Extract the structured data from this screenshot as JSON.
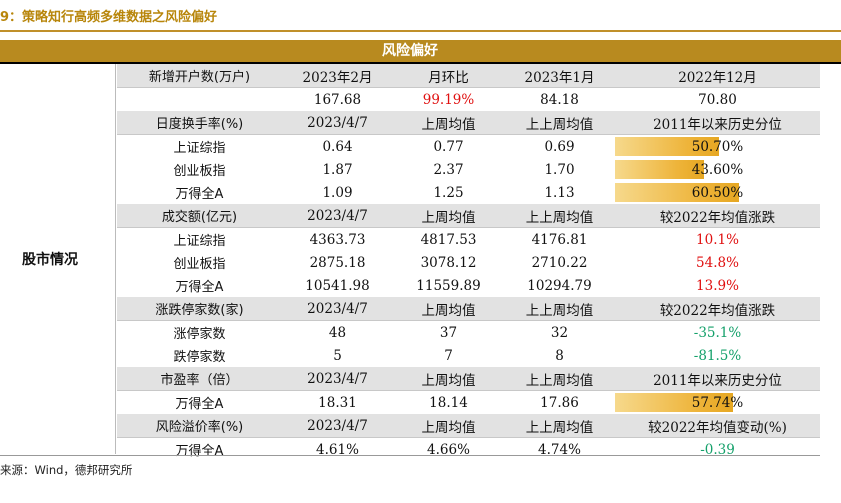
{
  "title": "9：策略知行高频多维数据之风险偏好",
  "header": "风险偏好",
  "left_label": "股市情况",
  "source": "来源：Wind，德邦研究所",
  "rows": [
    {
      "type": "hdr",
      "cells": [
        "新增开户数(万户)",
        "2023年2月",
        "月环比",
        "2023年1月",
        "2022年12月"
      ]
    },
    {
      "type": "row",
      "cells": [
        "",
        "167.68",
        "99.19%",
        "84.18",
        "70.80"
      ],
      "c2": "red"
    },
    {
      "type": "hdr",
      "cells": [
        "日度换手率(%)",
        "2023/4/7",
        "上周均值",
        "上上周均值",
        "2011年以来历史分位"
      ]
    },
    {
      "type": "row",
      "cells": [
        "上证综指",
        "0.64",
        "0.77",
        "0.69",
        "50.70%"
      ],
      "bar": 0.507
    },
    {
      "type": "row",
      "cells": [
        "创业板指",
        "1.87",
        "2.37",
        "1.70",
        "43.60%"
      ],
      "bar": 0.436
    },
    {
      "type": "row",
      "cells": [
        "万得全A",
        "1.09",
        "1.25",
        "1.13",
        "60.50%"
      ],
      "bar": 0.605
    },
    {
      "type": "hdr",
      "cells": [
        "成交额(亿元)",
        "2023/4/7",
        "上周均值",
        "上上周均值",
        "较2022年均值涨跌"
      ]
    },
    {
      "type": "row",
      "cells": [
        "上证综指",
        "4363.73",
        "4817.53",
        "4176.81",
        "10.1%"
      ],
      "c4": "red"
    },
    {
      "type": "row",
      "cells": [
        "创业板指",
        "2875.18",
        "3078.12",
        "2710.22",
        "54.8%"
      ],
      "c4": "red"
    },
    {
      "type": "row",
      "cells": [
        "万得全A",
        "10541.98",
        "11559.89",
        "10294.79",
        "13.9%"
      ],
      "c4": "red"
    },
    {
      "type": "hdr",
      "cells": [
        "涨跌停家数(家)",
        "2023/4/7",
        "上周均值",
        "上上周均值",
        "较2022年均值涨跌"
      ]
    },
    {
      "type": "row",
      "cells": [
        "涨停家数",
        "48",
        "37",
        "32",
        "-35.1%"
      ],
      "c4": "green"
    },
    {
      "type": "row",
      "cells": [
        "跌停家数",
        "5",
        "7",
        "8",
        "-81.5%"
      ],
      "c4": "green"
    },
    {
      "type": "hdr",
      "cells": [
        "市盈率（倍）",
        "2023/4/7",
        "上周均值",
        "上上周均值",
        "2011年以来历史分位"
      ]
    },
    {
      "type": "row",
      "cells": [
        "万得全A",
        "18.31",
        "18.14",
        "17.86",
        "57.74%"
      ],
      "bar": 0.5774
    },
    {
      "type": "hdr",
      "cells": [
        "风险溢价率(%)",
        "2023/4/7",
        "上周均值",
        "上上周均值",
        "较2022年均值变动(%)"
      ]
    },
    {
      "type": "row",
      "cells": [
        "万得全A",
        "4.61%",
        "4.66%",
        "4.74%",
        "-0.39"
      ],
      "c4": "green"
    }
  ]
}
